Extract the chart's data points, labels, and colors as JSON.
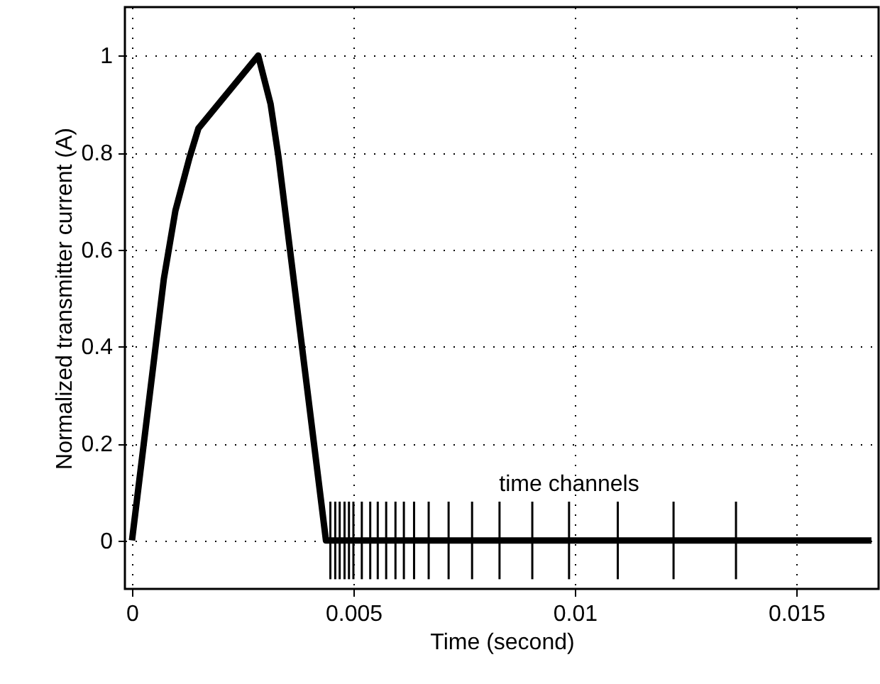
{
  "chart_data": {
    "type": "line",
    "xlabel": "Time (second)",
    "ylabel": "Normalized transmitter current (A)",
    "xlim": [
      0,
      0.0167
    ],
    "xticks": [
      0,
      0.005,
      0.01,
      0.015
    ],
    "ylim": [
      -0.1,
      1.1
    ],
    "yticks": [
      0,
      0.2,
      0.4,
      0.6,
      0.8,
      1
    ],
    "grid": true,
    "series": [
      {
        "color": "#000000",
        "x": [
          0,
          0.00072,
          0.00098,
          0.0013,
          0.0015,
          0.00285,
          0.00313,
          0.00331,
          0.00438,
          0.0167
        ],
        "values": [
          0,
          0.54,
          0.68,
          0.79,
          0.85,
          1,
          0.9,
          0.79,
          0,
          0
        ]
      },
      {
        "type": "bar",
        "color": "#000000",
        "x": [
          0.00448,
          0.00459,
          0.00469,
          0.0048,
          0.0049,
          0.005,
          0.00519,
          0.00538,
          0.00555,
          0.00574,
          0.00595,
          0.00614,
          0.00637,
          0.0067,
          0.00715,
          0.00768,
          0.0083,
          0.00904,
          0.00987,
          0.01097,
          0.01223,
          0.01364
        ],
        "base": [
          -0.08,
          -0.08,
          -0.08,
          -0.08,
          -0.08,
          -0.08,
          -0.08,
          -0.08,
          -0.08,
          -0.08,
          -0.08,
          -0.08,
          -0.08,
          -0.08,
          -0.08,
          -0.08,
          -0.08,
          -0.08,
          -0.08,
          -0.08,
          -0.08,
          -0.08
        ],
        "values": [
          0.16,
          0.16,
          0.16,
          0.16,
          0.16,
          0.16,
          0.16,
          0.16,
          0.16,
          0.16,
          0.16,
          0.16,
          0.16,
          0.16,
          0.16,
          0.16,
          0.16,
          0.16,
          0.16,
          0.16,
          0.16,
          0.16
        ]
      }
    ],
    "annotations": [
      "time channels"
    ]
  }
}
